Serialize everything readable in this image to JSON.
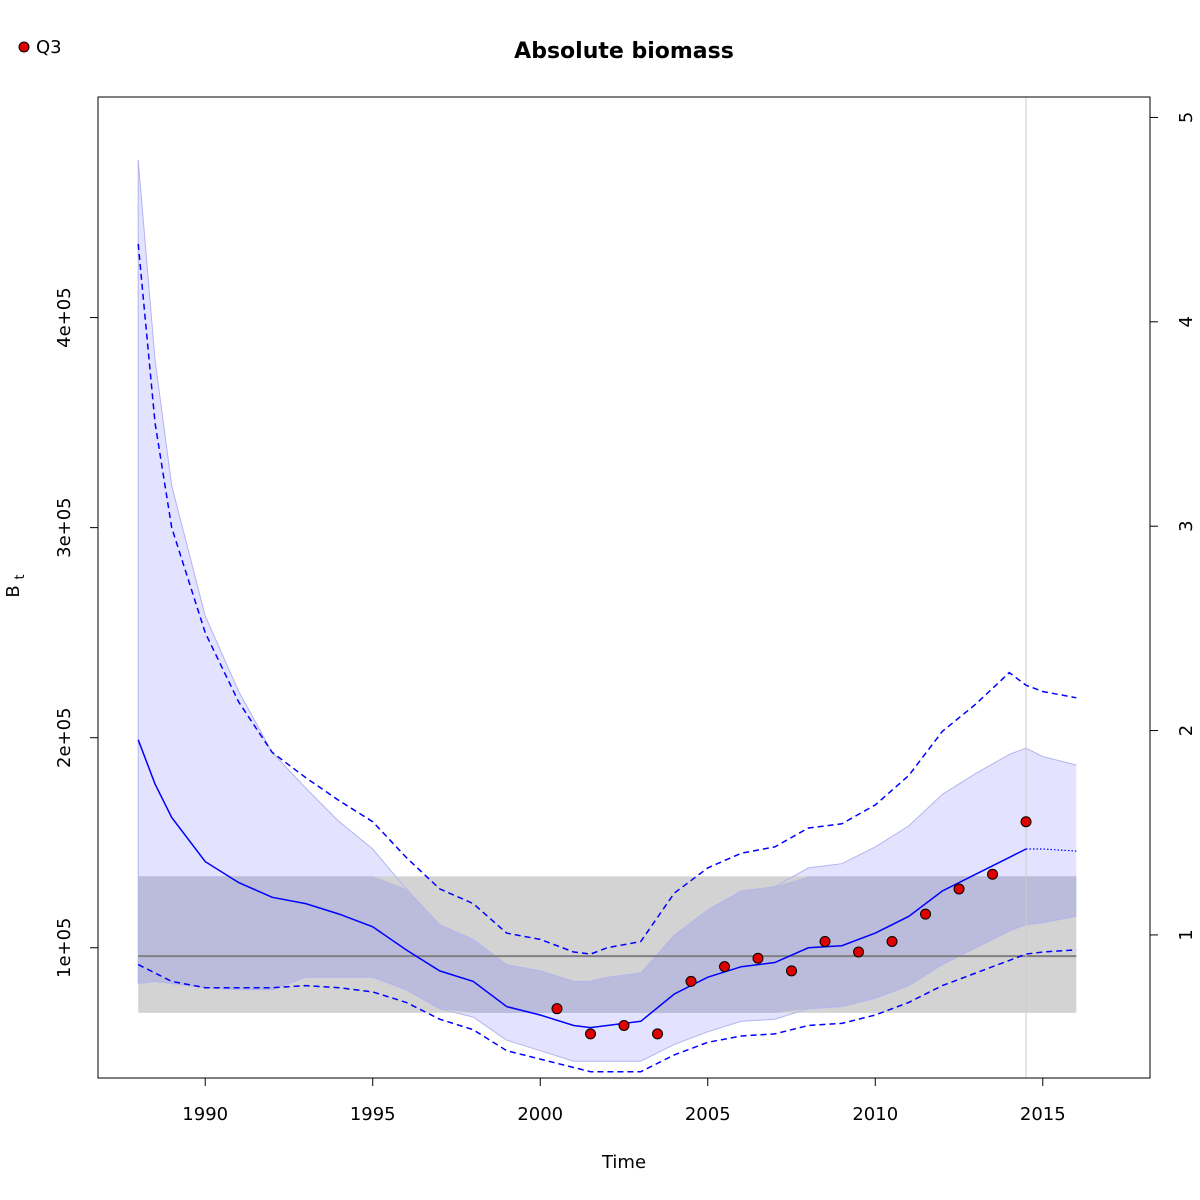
{
  "chart_data": {
    "type": "line",
    "title": "Absolute biomass",
    "xlabel": "Time",
    "ylabel_main": "B",
    "ylabel_sub": "t",
    "xlim": [
      1986.8,
      2018.2
    ],
    "ylim": [
      38000,
      505000
    ],
    "right_ylim": [
      0.3,
      5.1
    ],
    "x_ticks": [
      1990,
      1995,
      2000,
      2005,
      2010,
      2015
    ],
    "y_ticks": [
      100000,
      200000,
      300000,
      400000
    ],
    "y_tick_labels": [
      "1e+05",
      "2e+05",
      "3e+05",
      "4e+05"
    ],
    "right_ticks": [
      1,
      2,
      3,
      4,
      5
    ],
    "right_tick_labels": [
      "1",
      "2",
      "3",
      "4",
      "5"
    ],
    "legend": {
      "label": "Q3",
      "placement": "top-left",
      "color": "#e00000"
    },
    "colors": {
      "estimate": "#0000ff",
      "ci_fill": "#e3e3ff",
      "ci_stroke": "#b4b4ee",
      "ref_band": "#d3d3d3",
      "overlap": "#bbbbdb",
      "ref_line": "#808080",
      "observation": "#e00000",
      "vline": "#cccccc"
    },
    "reference_band": {
      "lower": 69000,
      "upper": 134000,
      "x_start": 1988,
      "x_end": 2016
    },
    "reference_line": 96000,
    "vertical_line_x": 2014.5,
    "estimate": {
      "x": [
        1988,
        1988.5,
        1989,
        1990,
        1991,
        1992,
        1993,
        1994,
        1995,
        1996,
        1997,
        1998,
        1999,
        2000,
        2001,
        2001.5,
        2002,
        2003,
        2004,
        2005,
        2006,
        2007,
        2008,
        2009,
        2010,
        2011,
        2012,
        2013,
        2014,
        2014.5
      ],
      "y": [
        199000,
        178000,
        162000,
        141000,
        131000,
        124000,
        121000,
        116000,
        110000,
        99000,
        89000,
        84000,
        72000,
        68000,
        63000,
        62000,
        63000,
        65000,
        78000,
        86000,
        91000,
        93000,
        100000,
        101000,
        107000,
        115000,
        127000,
        135000,
        143000,
        147000
      ]
    },
    "estimate_projection": {
      "x": [
        2014.5,
        2015,
        2016
      ],
      "y": [
        147000,
        147000,
        146000
      ]
    },
    "ci_outer": {
      "x": [
        1988,
        1988.5,
        1989,
        1990,
        1991,
        1992,
        1993,
        1994,
        1995,
        1996,
        1997,
        1998,
        1999,
        2000,
        2001,
        2001.5,
        2002,
        2003,
        2004,
        2005,
        2006,
        2007,
        2008,
        2009,
        2010,
        2011,
        2012,
        2013,
        2014,
        2014.5,
        2015,
        2016
      ],
      "upper": [
        475000,
        380000,
        320000,
        258000,
        222000,
        193000,
        176000,
        160000,
        147000,
        128000,
        111000,
        104000,
        92000,
        89000,
        84000,
        84000,
        86000,
        88000,
        106000,
        118000,
        127000,
        129000,
        138000,
        140000,
        148000,
        158000,
        173000,
        183000,
        192000,
        195000,
        191000,
        187000
      ],
      "lower": [
        83000,
        84000,
        83000,
        81000,
        80000,
        80000,
        86000,
        86000,
        86000,
        80000,
        71000,
        67000,
        56000,
        51000,
        46000,
        46000,
        46000,
        46000,
        54000,
        60000,
        65000,
        66000,
        71000,
        72000,
        76000,
        82000,
        92000,
        100000,
        108000,
        111000,
        112000,
        115000
      ]
    },
    "ci_dashed": {
      "x": [
        1988,
        1988.5,
        1989,
        1990,
        1991,
        1992,
        1993,
        1994,
        1995,
        1996,
        1997,
        1998,
        1999,
        2000,
        2001,
        2001.5,
        2002,
        2003,
        2004,
        2005,
        2006,
        2007,
        2008,
        2009,
        2010,
        2011,
        2012,
        2013,
        2014,
        2014.5,
        2015,
        2016
      ],
      "upper": [
        435000,
        350000,
        300000,
        250000,
        217000,
        193000,
        181000,
        170000,
        160000,
        143000,
        128000,
        121000,
        107000,
        104000,
        98000,
        97000,
        100000,
        103000,
        126000,
        138000,
        145000,
        148000,
        157000,
        159000,
        168000,
        182000,
        203000,
        216000,
        231000,
        225000,
        222000,
        219000
      ],
      "lower": [
        92000,
        88000,
        84000,
        81000,
        81000,
        81000,
        82000,
        81000,
        79000,
        74000,
        66000,
        61000,
        51000,
        47000,
        43000,
        41000,
        41000,
        41000,
        49000,
        55000,
        58000,
        59000,
        63000,
        64000,
        68000,
        74000,
        82000,
        88000,
        94000,
        97000,
        98000,
        99000
      ]
    },
    "observations": {
      "x": [
        2000.5,
        2001.5,
        2002.5,
        2003.5,
        2004.5,
        2005.5,
        2006.5,
        2007.5,
        2008.5,
        2009.5,
        2010.5,
        2011.5,
        2012.5,
        2013.5,
        2014.5
      ],
      "y": [
        71000,
        59000,
        63000,
        59000,
        84000,
        91000,
        95000,
        89000,
        103000,
        98000,
        103000,
        116000,
        128000,
        135000,
        160000
      ]
    }
  }
}
